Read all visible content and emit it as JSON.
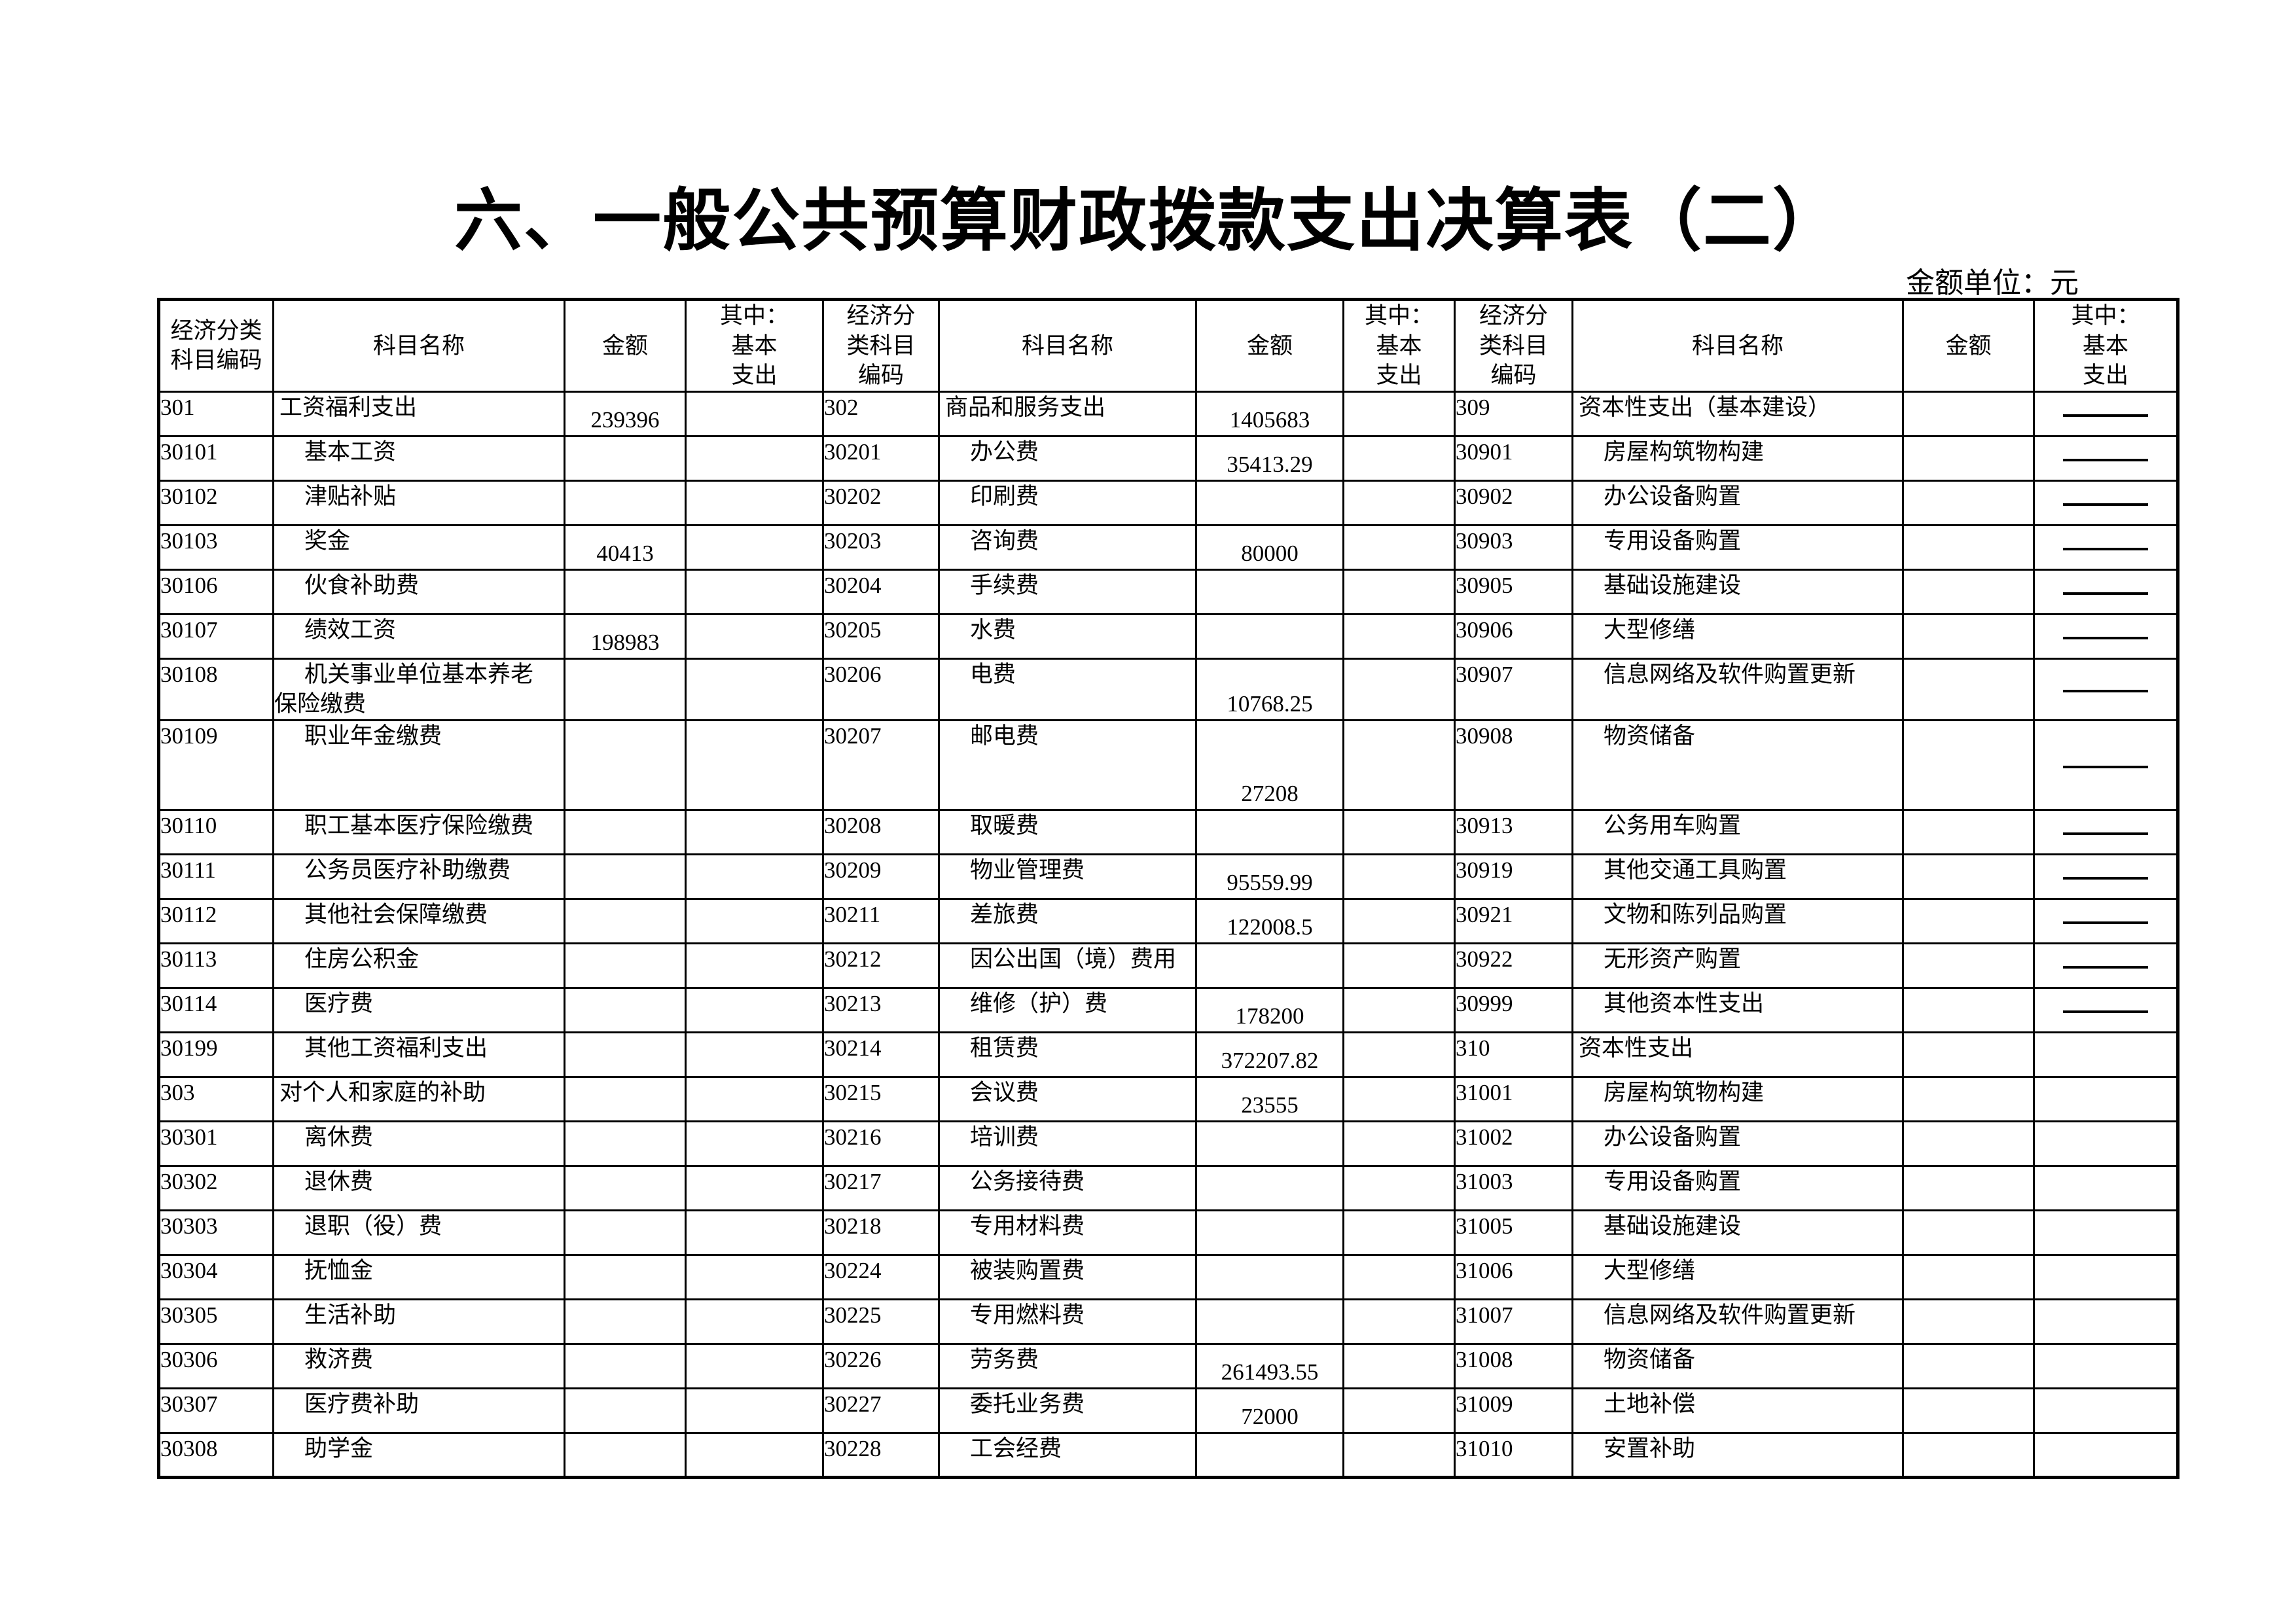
{
  "page": {
    "title": "六、一般公共预算财政拨款支出决算表（二）",
    "unit_label": "金额单位：元"
  },
  "table": {
    "header": {
      "g1": {
        "code": "经济分类\n科目编码",
        "name": "科目名称",
        "amount": "金额",
        "basic": "其中：\n基本\n支出"
      },
      "g2": {
        "code": "经济分\n类科目\n编码",
        "name": "科目名称",
        "amount": "金额",
        "basic": "其中：\n基本\n支出"
      },
      "g3": {
        "code": "经济分\n类科目\n编码",
        "name": "科目名称",
        "amount": "金额",
        "basic": "其中：\n基本\n支出"
      }
    },
    "rows": [
      {
        "h": 0,
        "g1": {
          "code": "301",
          "name": "工资福利支出",
          "amount": "239396",
          "basic": ""
        },
        "g2": {
          "code": "302",
          "name": "商品和服务支出",
          "amount": "1405683",
          "basic": ""
        },
        "g3": {
          "code": "309",
          "name": "资本性支出（基本建设）",
          "amount": "",
          "basic": "dash"
        }
      },
      {
        "h": 0,
        "g1": {
          "code": "30101",
          "name": "基本工资",
          "amount": "",
          "basic": ""
        },
        "g2": {
          "code": "30201",
          "name": "办公费",
          "amount": "35413.29",
          "basic": ""
        },
        "g3": {
          "code": "30901",
          "name": "房屋构筑物构建",
          "amount": "",
          "basic": "dash"
        }
      },
      {
        "h": 0,
        "g1": {
          "code": "30102",
          "name": "津贴补贴",
          "amount": "",
          "basic": ""
        },
        "g2": {
          "code": "30202",
          "name": "印刷费",
          "amount": "",
          "basic": ""
        },
        "g3": {
          "code": "30902",
          "name": "办公设备购置",
          "amount": "",
          "basic": "dash"
        }
      },
      {
        "h": 0,
        "g1": {
          "code": "30103",
          "name": "奖金",
          "amount": "40413",
          "basic": ""
        },
        "g2": {
          "code": "30203",
          "name": "咨询费",
          "amount": "80000",
          "basic": ""
        },
        "g3": {
          "code": "30903",
          "name": "专用设备购置",
          "amount": "",
          "basic": "dash"
        }
      },
      {
        "h": 0,
        "g1": {
          "code": "30106",
          "name": "伙食补助费",
          "amount": "",
          "basic": ""
        },
        "g2": {
          "code": "30204",
          "name": "手续费",
          "amount": "",
          "basic": ""
        },
        "g3": {
          "code": "30905",
          "name": "基础设施建设",
          "amount": "",
          "basic": "dash"
        }
      },
      {
        "h": 0,
        "g1": {
          "code": "30107",
          "name": "绩效工资",
          "amount": "198983",
          "basic": ""
        },
        "g2": {
          "code": "30205",
          "name": "水费",
          "amount": "",
          "basic": ""
        },
        "g3": {
          "code": "30906",
          "name": "大型修缮",
          "amount": "",
          "basic": "dash"
        }
      },
      {
        "h": 1,
        "g1": {
          "code": "30108",
          "name": "机关事业单位基本养老\n保险缴费",
          "amount": "",
          "basic": ""
        },
        "g2": {
          "code": "30206",
          "name": "电费",
          "amount": "10768.25",
          "basic": ""
        },
        "g3": {
          "code": "30907",
          "name": "信息网络及软件购置更新",
          "amount": "",
          "basic": "dash"
        }
      },
      {
        "h": 2,
        "g1": {
          "code": "30109",
          "name": "职业年金缴费",
          "amount": "",
          "basic": ""
        },
        "g2": {
          "code": "30207",
          "name": "邮电费",
          "amount": "27208",
          "basic": ""
        },
        "g3": {
          "code": "30908",
          "name": "物资储备",
          "amount": "",
          "basic": "dash"
        }
      },
      {
        "h": 0,
        "g1": {
          "code": "30110",
          "name": "职工基本医疗保险缴费",
          "amount": "",
          "basic": ""
        },
        "g2": {
          "code": "30208",
          "name": "取暖费",
          "amount": "",
          "basic": ""
        },
        "g3": {
          "code": "30913",
          "name": "公务用车购置",
          "amount": "",
          "basic": "dash"
        }
      },
      {
        "h": 0,
        "g1": {
          "code": "30111",
          "name": "公务员医疗补助缴费",
          "amount": "",
          "basic": ""
        },
        "g2": {
          "code": "30209",
          "name": "物业管理费",
          "amount": "95559.99",
          "basic": ""
        },
        "g3": {
          "code": "30919",
          "name": "其他交通工具购置",
          "amount": "",
          "basic": "dash"
        }
      },
      {
        "h": 0,
        "g1": {
          "code": "30112",
          "name": "其他社会保障缴费",
          "amount": "",
          "basic": ""
        },
        "g2": {
          "code": "30211",
          "name": "差旅费",
          "amount": "122008.5",
          "basic": ""
        },
        "g3": {
          "code": "30921",
          "name": "文物和陈列品购置",
          "amount": "",
          "basic": "dash"
        }
      },
      {
        "h": 0,
        "g1": {
          "code": "30113",
          "name": "住房公积金",
          "amount": "",
          "basic": ""
        },
        "g2": {
          "code": "30212",
          "name": "因公出国（境）费用",
          "amount": "",
          "basic": ""
        },
        "g3": {
          "code": "30922",
          "name": "无形资产购置",
          "amount": "",
          "basic": "dash"
        }
      },
      {
        "h": 0,
        "g1": {
          "code": "30114",
          "name": "医疗费",
          "amount": "",
          "basic": ""
        },
        "g2": {
          "code": "30213",
          "name": "维修（护）费",
          "amount": "178200",
          "basic": ""
        },
        "g3": {
          "code": "30999",
          "name": "其他资本性支出",
          "amount": "",
          "basic": "dash"
        }
      },
      {
        "h": 0,
        "g1": {
          "code": "30199",
          "name": "其他工资福利支出",
          "amount": "",
          "basic": ""
        },
        "g2": {
          "code": "30214",
          "name": "租赁费",
          "amount": "372207.82",
          "basic": ""
        },
        "g3": {
          "code": "310",
          "name": "资本性支出",
          "amount": "",
          "basic": ""
        }
      },
      {
        "h": 0,
        "g1": {
          "code": "303",
          "name": "对个人和家庭的补助",
          "amount": "",
          "basic": ""
        },
        "g2": {
          "code": "30215",
          "name": "会议费",
          "amount": "23555",
          "basic": ""
        },
        "g3": {
          "code": "31001",
          "name": "房屋构筑物构建",
          "amount": "",
          "basic": ""
        }
      },
      {
        "h": 0,
        "g1": {
          "code": "30301",
          "name": "离休费",
          "amount": "",
          "basic": ""
        },
        "g2": {
          "code": "30216",
          "name": "培训费",
          "amount": "",
          "basic": ""
        },
        "g3": {
          "code": "31002",
          "name": "办公设备购置",
          "amount": "",
          "basic": ""
        }
      },
      {
        "h": 0,
        "g1": {
          "code": "30302",
          "name": "退休费",
          "amount": "",
          "basic": ""
        },
        "g2": {
          "code": "30217",
          "name": "公务接待费",
          "amount": "",
          "basic": ""
        },
        "g3": {
          "code": "31003",
          "name": "专用设备购置",
          "amount": "",
          "basic": ""
        }
      },
      {
        "h": 0,
        "g1": {
          "code": "30303",
          "name": "退职（役）费",
          "amount": "",
          "basic": ""
        },
        "g2": {
          "code": "30218",
          "name": "专用材料费",
          "amount": "",
          "basic": ""
        },
        "g3": {
          "code": "31005",
          "name": "基础设施建设",
          "amount": "",
          "basic": ""
        }
      },
      {
        "h": 0,
        "g1": {
          "code": "30304",
          "name": "抚恤金",
          "amount": "",
          "basic": ""
        },
        "g2": {
          "code": "30224",
          "name": "被装购置费",
          "amount": "",
          "basic": ""
        },
        "g3": {
          "code": "31006",
          "name": "大型修缮",
          "amount": "",
          "basic": ""
        }
      },
      {
        "h": 0,
        "g1": {
          "code": "30305",
          "name": "生活补助",
          "amount": "",
          "basic": ""
        },
        "g2": {
          "code": "30225",
          "name": "专用燃料费",
          "amount": "",
          "basic": ""
        },
        "g3": {
          "code": "31007",
          "name": "信息网络及软件购置更新",
          "amount": "",
          "basic": ""
        }
      },
      {
        "h": 0,
        "g1": {
          "code": "30306",
          "name": "救济费",
          "amount": "",
          "basic": ""
        },
        "g2": {
          "code": "30226",
          "name": "劳务费",
          "amount": "261493.55",
          "basic": ""
        },
        "g3": {
          "code": "31008",
          "name": "物资储备",
          "amount": "",
          "basic": ""
        }
      },
      {
        "h": 0,
        "g1": {
          "code": "30307",
          "name": "医疗费补助",
          "amount": "",
          "basic": ""
        },
        "g2": {
          "code": "30227",
          "name": "委托业务费",
          "amount": "72000",
          "basic": ""
        },
        "g3": {
          "code": "31009",
          "name": "土地补偿",
          "amount": "",
          "basic": ""
        }
      },
      {
        "h": 0,
        "g1": {
          "code": "30308",
          "name": "助学金",
          "amount": "",
          "basic": ""
        },
        "g2": {
          "code": "30228",
          "name": "工会经费",
          "amount": "",
          "basic": ""
        },
        "g3": {
          "code": "31010",
          "name": "安置补助",
          "amount": "",
          "basic": ""
        }
      }
    ]
  }
}
